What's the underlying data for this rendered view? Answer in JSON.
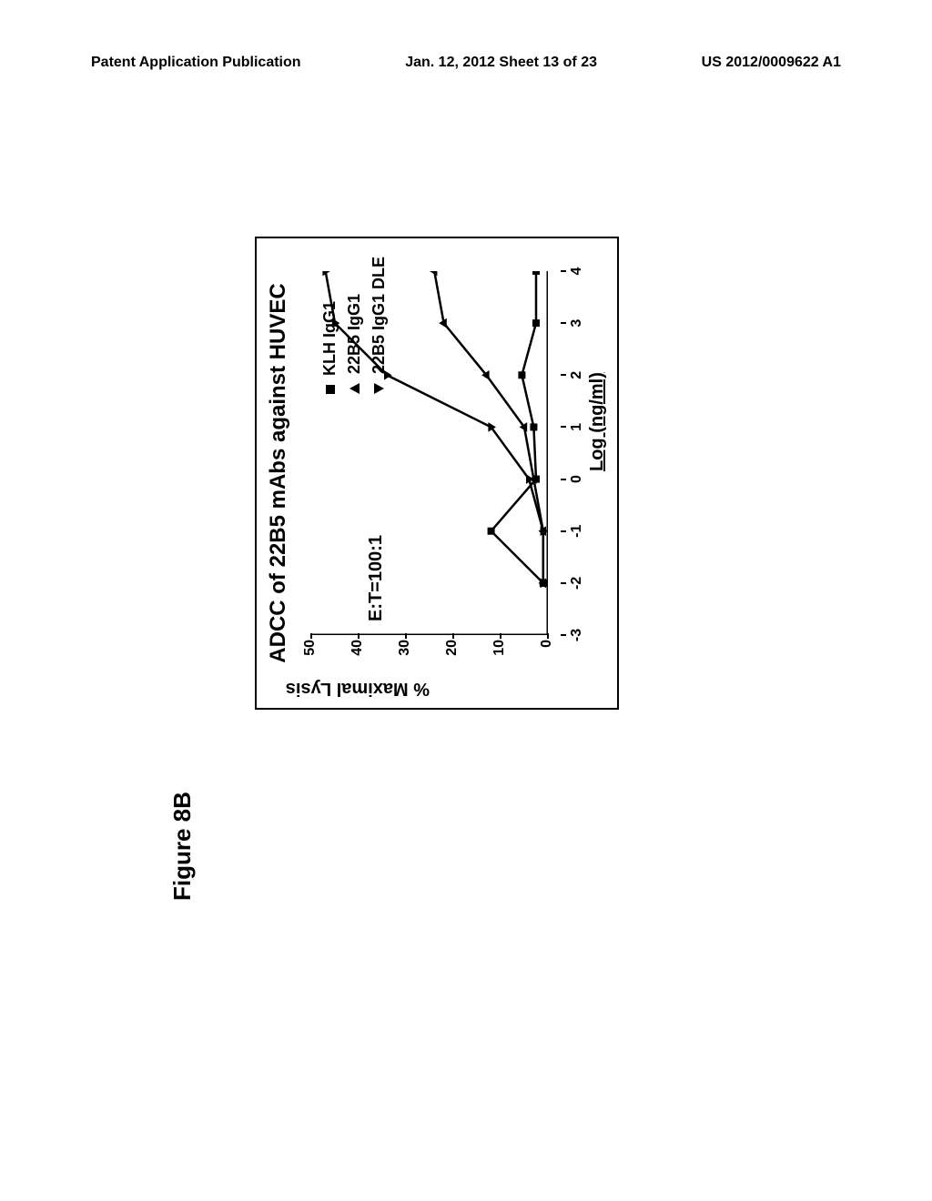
{
  "header": {
    "left": "Patent Application Publication",
    "center": "Jan. 12, 2012  Sheet 13 of 23",
    "right": "US 2012/0009622 A1"
  },
  "figure_label": "Figure 8B",
  "chart": {
    "type": "line",
    "title": "ADCC of 22B5 mAbs against HUVEC",
    "ratio_label": "E:T=100:1",
    "x_label": "Log (ng/ml)",
    "y_label": "% Maximal Lysis",
    "xlim": [
      -3,
      4
    ],
    "ylim": [
      0,
      50
    ],
    "x_ticks": [
      -3,
      -2,
      -1,
      0,
      1,
      2,
      3,
      4
    ],
    "y_ticks": [
      0,
      10,
      20,
      30,
      40,
      50
    ],
    "background": "#ffffff",
    "axis_color": "#000000",
    "line_color": "#000000",
    "line_width": 2.5,
    "marker_size": 8,
    "series": [
      {
        "name": "KLH IgG1",
        "marker": "square",
        "x": [
          -2,
          -1,
          0,
          1,
          2,
          3,
          4
        ],
        "y": [
          1,
          12,
          2.5,
          3,
          5.5,
          2.5,
          2.5
        ]
      },
      {
        "name": "22B5 IgG1",
        "marker": "triangle-up",
        "x": [
          -2,
          -1,
          0,
          1,
          2,
          3,
          4
        ],
        "y": [
          1,
          1,
          3,
          5,
          13,
          22,
          24
        ]
      },
      {
        "name": "22B5 IgG1 DLE",
        "marker": "triangle-down",
        "x": [
          -2,
          -1,
          0,
          1,
          2,
          3,
          4
        ],
        "y": [
          1,
          1,
          4,
          12,
          34,
          45,
          47
        ]
      }
    ]
  }
}
